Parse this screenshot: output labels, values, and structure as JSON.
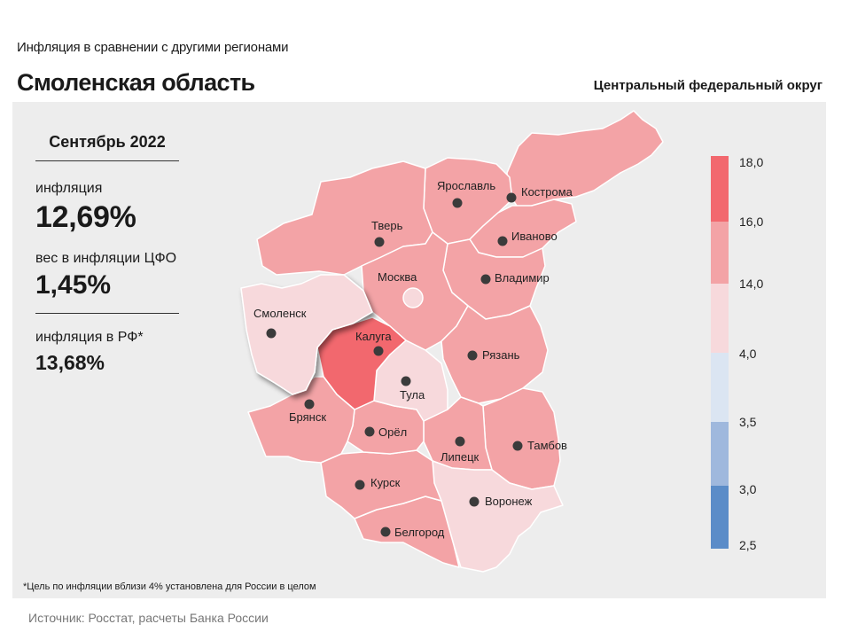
{
  "header": {
    "subtitle": "Инфляция  в сравнении  с другими  регионами",
    "region_name": "Смоленская область",
    "district": "Центральный федеральный округ"
  },
  "stats": {
    "period": "Сентябрь 2022",
    "inflation_label": "инфляция",
    "inflation_value": "12,69%",
    "weight_label": "вес в инфляции  ЦФО",
    "weight_value": "1,45%",
    "rf_label": "инфляция  в РФ*",
    "rf_value": "13,68%"
  },
  "footnote": "*Цель по инфляции вблизи 4% установлена для России в целом",
  "source": "Источник: Росстат, расчеты Банка России",
  "map": {
    "highlighted_region": "Смоленск",
    "cities": {
      "yaroslavl": "Ярославль",
      "kostroma": "Кострома",
      "tver": "Тверь",
      "ivanovo": "Иваново",
      "moskva": "Москва",
      "vladimir": "Владимир",
      "smolensk": "Смоленск",
      "kaluga": "Калуга",
      "ryazan": "Рязань",
      "tula": "Тула",
      "bryansk": "Брянск",
      "orel": "Орёл",
      "tambov": "Тамбов",
      "lipetsk": "Липецк",
      "kursk": "Курск",
      "voronezh": "Воронеж",
      "belgorod": "Белгород"
    },
    "colors": {
      "band_14_16": "#f3a3a6",
      "band_16_18": "#f2686e",
      "band_4_14": "#f7d9dc",
      "border": "#ffffff",
      "city_dot": "#3b3b3b"
    }
  },
  "legend": {
    "ticks": [
      "18,0",
      "16,0",
      "14,0",
      "4,0",
      "3,5",
      "3,0",
      "2,5"
    ],
    "colors": [
      "#f2686e",
      "#f3a3a6",
      "#f7d9dc",
      "#dbe5f2",
      "#9fb8dd",
      "#5b8cc8"
    ]
  }
}
